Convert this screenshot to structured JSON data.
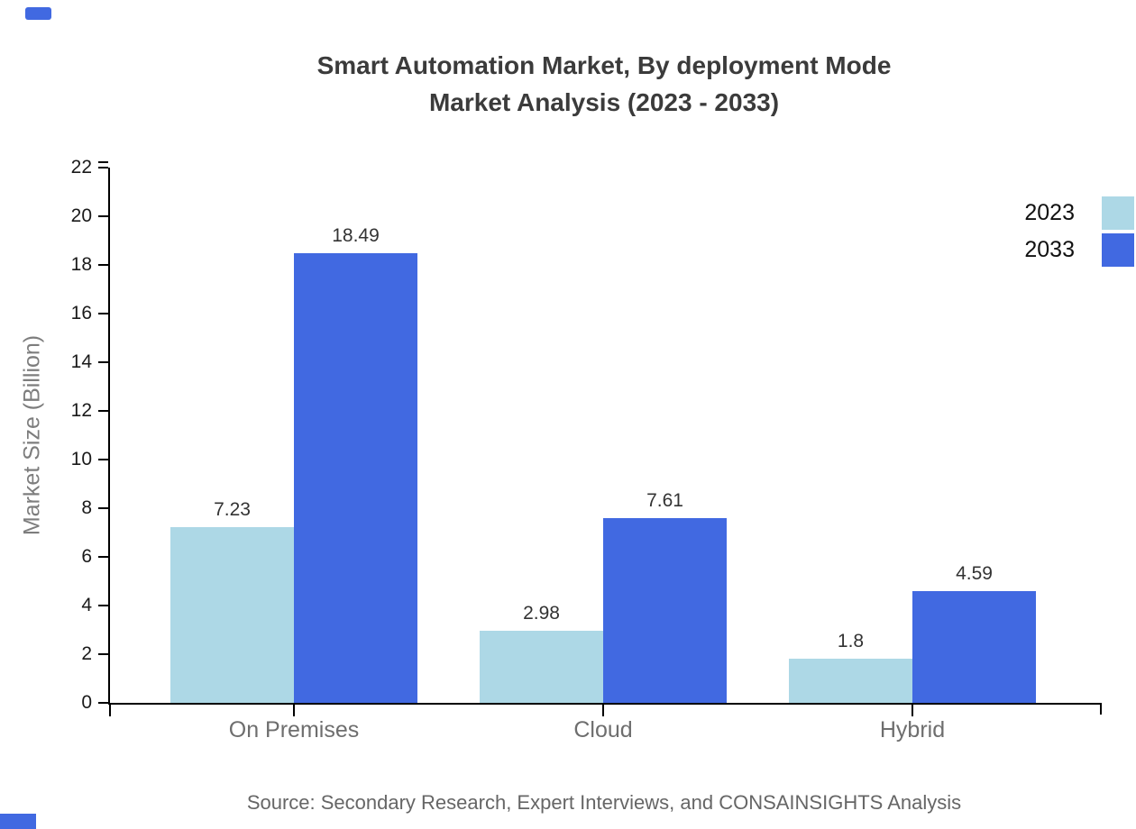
{
  "title": {
    "line1": "Smart Automation Market, By deployment Mode",
    "line2": "Market Analysis (2023 - 2033)"
  },
  "y_axis": {
    "label": "Market Size (Billion)"
  },
  "source_note": "Source: Secondary Research, Expert Interviews, and CONSAINSIGHTS Analysis",
  "legend": {
    "items": [
      {
        "label": "2023",
        "color": "#add8e6"
      },
      {
        "label": "2033",
        "color": "#4169e1"
      }
    ]
  },
  "chart_data": {
    "type": "bar",
    "title": "Smart Automation Market, By deployment Mode Market Analysis (2023 - 2033)",
    "categories": [
      "On Premises",
      "Cloud",
      "Hybrid"
    ],
    "series": [
      {
        "name": "2023",
        "color": "#add8e6",
        "values": [
          7.23,
          2.98,
          1.8
        ],
        "value_labels": [
          "7.23",
          "2.98",
          "1.8"
        ]
      },
      {
        "name": "2033",
        "color": "#4169e1",
        "values": [
          18.49,
          7.61,
          4.59
        ],
        "value_labels": [
          "18.49",
          "7.61",
          "4.59"
        ]
      }
    ],
    "xlabel": "",
    "ylabel": "Market Size (Billion)",
    "ylim": [
      0,
      22
    ],
    "y_ticks": [
      0,
      2,
      4,
      6,
      8,
      10,
      12,
      14,
      16,
      18,
      20,
      22
    ],
    "grid": false,
    "legend_position": "top-right"
  },
  "decorations": {
    "corner_marks": [
      {
        "position": "top-left",
        "color": "#4169e1"
      },
      {
        "position": "bottom-left",
        "color": "#4169e1"
      }
    ]
  }
}
